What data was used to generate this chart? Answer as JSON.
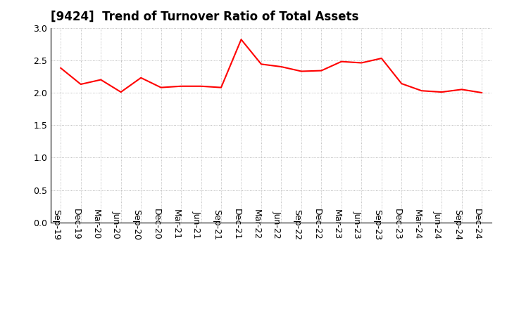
{
  "title": "[9424]  Trend of Turnover Ratio of Total Assets",
  "line_color": "#FF0000",
  "background_color": "#FFFFFF",
  "grid_color": "#AAAAAA",
  "ylim": [
    0.0,
    3.0
  ],
  "yticks": [
    0.0,
    0.5,
    1.0,
    1.5,
    2.0,
    2.5,
    3.0
  ],
  "labels": [
    "Sep-19",
    "Dec-19",
    "Mar-20",
    "Jun-20",
    "Sep-20",
    "Dec-20",
    "Mar-21",
    "Jun-21",
    "Sep-21",
    "Dec-21",
    "Mar-22",
    "Jun-22",
    "Sep-22",
    "Dec-22",
    "Mar-23",
    "Jun-23",
    "Sep-23",
    "Dec-23",
    "Mar-24",
    "Jun-24",
    "Sep-24",
    "Dec-24"
  ],
  "values": [
    2.38,
    2.13,
    2.2,
    2.01,
    2.23,
    2.08,
    2.1,
    2.1,
    2.08,
    2.82,
    2.44,
    2.4,
    2.33,
    2.34,
    2.48,
    2.46,
    2.53,
    2.14,
    2.03,
    2.01,
    2.05,
    2.0
  ],
  "title_fontsize": 12,
  "tick_labelsize": 9,
  "xlabel_rotation": -90,
  "line_width": 1.5
}
